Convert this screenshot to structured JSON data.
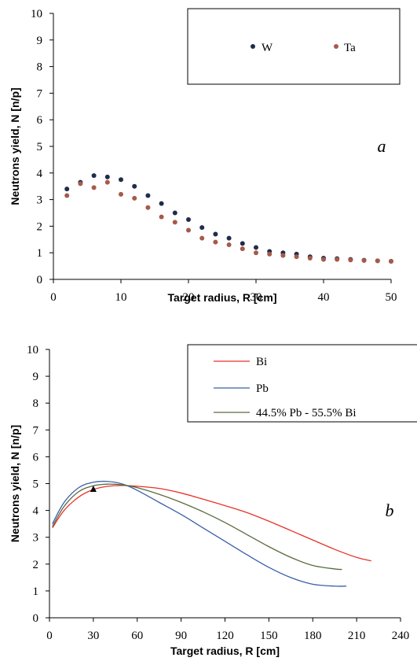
{
  "chart_data": [
    {
      "type": "scatter",
      "panel_label": "a",
      "xlabel": "Target radius, R [cm]",
      "ylabel": "Neutrons yield, N [n/p]",
      "xlim": [
        0,
        50
      ],
      "ylim": [
        0,
        10
      ],
      "xticks": [
        "0",
        "10",
        "20",
        "30",
        "40",
        "50"
      ],
      "yticks": [
        "0",
        "1",
        "2",
        "3",
        "4",
        "5",
        "6",
        "7",
        "8",
        "9",
        "10"
      ],
      "grid": false,
      "legend_position": "top-right",
      "series": [
        {
          "name": "W",
          "color": "#1f2d4a",
          "x": [
            2,
            4,
            6,
            8,
            10,
            12,
            14,
            16,
            18,
            20,
            22,
            24,
            26,
            28,
            30,
            32,
            34,
            36,
            38,
            40,
            42,
            44,
            46,
            48,
            50
          ],
          "y": [
            3.4,
            3.65,
            3.9,
            3.85,
            3.75,
            3.5,
            3.15,
            2.85,
            2.5,
            2.25,
            1.95,
            1.7,
            1.55,
            1.35,
            1.2,
            1.05,
            1.0,
            0.95,
            0.85,
            0.8,
            0.78,
            0.75,
            0.72,
            0.7,
            0.68
          ]
        },
        {
          "name": "Ta",
          "color": "#a65a4a",
          "x": [
            2,
            4,
            6,
            8,
            10,
            12,
            14,
            16,
            18,
            20,
            22,
            24,
            26,
            28,
            30,
            32,
            34,
            36,
            38,
            40,
            42,
            44,
            46,
            48,
            50
          ],
          "y": [
            3.15,
            3.6,
            3.45,
            3.65,
            3.2,
            3.05,
            2.7,
            2.35,
            2.15,
            1.85,
            1.55,
            1.4,
            1.3,
            1.15,
            1.0,
            0.95,
            0.9,
            0.85,
            0.8,
            0.75,
            0.75,
            0.73,
            0.71,
            0.7,
            0.68
          ]
        }
      ]
    },
    {
      "type": "line",
      "panel_label": "b",
      "xlabel": "Target radius, R [cm]",
      "ylabel": "Neutrons yield, N [n/p]",
      "xlim": [
        0,
        240
      ],
      "ylim": [
        0,
        10
      ],
      "xticks": [
        "0",
        "30",
        "60",
        "90",
        "120",
        "150",
        "180",
        "210",
        "240"
      ],
      "yticks": [
        "0",
        "1",
        "2",
        "3",
        "4",
        "5",
        "6",
        "7",
        "8",
        "9",
        "10"
      ],
      "grid": false,
      "legend_position": "top-right",
      "series": [
        {
          "name": "Bi",
          "color": "#e8332a",
          "x": [
            2,
            10,
            20,
            30,
            40,
            50,
            60,
            75,
            90,
            105,
            120,
            135,
            150,
            165,
            180,
            195,
            210,
            220
          ],
          "y": [
            3.35,
            4.0,
            4.5,
            4.78,
            4.9,
            4.93,
            4.9,
            4.82,
            4.65,
            4.42,
            4.18,
            3.92,
            3.6,
            3.25,
            2.9,
            2.55,
            2.25,
            2.12
          ]
        },
        {
          "name": "Pb",
          "color": "#3b5fa8",
          "x": [
            2,
            10,
            20,
            30,
            40,
            50,
            60,
            75,
            90,
            105,
            120,
            135,
            150,
            165,
            180,
            195,
            203
          ],
          "y": [
            3.5,
            4.3,
            4.85,
            5.05,
            5.08,
            4.98,
            4.75,
            4.3,
            3.85,
            3.35,
            2.85,
            2.35,
            1.88,
            1.5,
            1.25,
            1.18,
            1.18
          ]
        },
        {
          "name": "44.5% Pb - 55.5% Bi",
          "color": "#5a6b3e",
          "x": [
            2,
            10,
            20,
            30,
            40,
            50,
            60,
            75,
            90,
            105,
            120,
            135,
            150,
            165,
            180,
            195,
            200
          ],
          "y": [
            3.4,
            4.15,
            4.7,
            4.92,
            4.98,
            4.95,
            4.85,
            4.6,
            4.3,
            3.95,
            3.55,
            3.1,
            2.65,
            2.25,
            1.95,
            1.82,
            1.8
          ]
        }
      ],
      "marker": {
        "x": 30,
        "y": 4.78,
        "color": "#000000"
      }
    }
  ]
}
